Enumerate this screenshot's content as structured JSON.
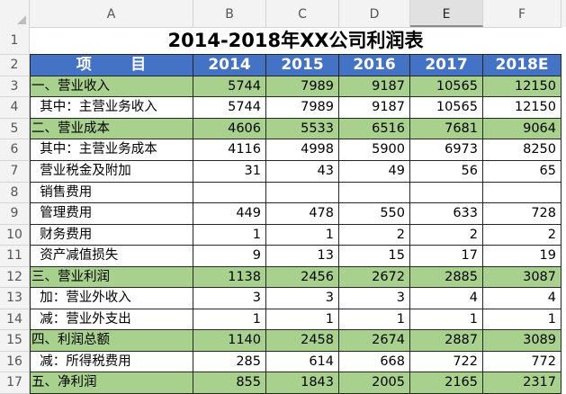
{
  "sheet": {
    "columns": [
      "A",
      "B",
      "C",
      "D",
      "E",
      "F"
    ],
    "selected_column": "E",
    "row_numbers": [
      "1",
      "2",
      "3",
      "4",
      "5",
      "6",
      "7",
      "8",
      "9",
      "10",
      "11",
      "12",
      "13",
      "14",
      "15",
      "16",
      "17"
    ],
    "title": "2014-2018年XX公司利润表",
    "header": {
      "item_part1": "项",
      "item_part2": "目",
      "years": [
        "2014",
        "2015",
        "2016",
        "2017",
        "2018E"
      ]
    },
    "rows": [
      {
        "label": "一、营业收入",
        "values": [
          "5744",
          "7989",
          "9187",
          "10565",
          "12150"
        ],
        "highlight": true
      },
      {
        "label": "  其中：主营业务收入",
        "values": [
          "5744",
          "7989",
          "9187",
          "10565",
          "12150"
        ],
        "highlight": false
      },
      {
        "label": "二、营业成本",
        "values": [
          "4606",
          "5533",
          "6516",
          "7681",
          "9064"
        ],
        "highlight": true
      },
      {
        "label": "  其中：主营业务成本",
        "values": [
          "4116",
          "4998",
          "5900",
          "6973",
          "8250"
        ],
        "highlight": false
      },
      {
        "label": "  营业税金及附加",
        "values": [
          "31",
          "43",
          "49",
          "56",
          "65"
        ],
        "highlight": false
      },
      {
        "label": "  销售费用",
        "values": [
          "",
          "",
          "",
          "",
          ""
        ],
        "highlight": false
      },
      {
        "label": "  管理费用",
        "values": [
          "449",
          "478",
          "550",
          "633",
          "728"
        ],
        "highlight": false
      },
      {
        "label": "  财务费用",
        "values": [
          "1",
          "1",
          "2",
          "2",
          "2"
        ],
        "highlight": false
      },
      {
        "label": "  资产减值损失",
        "values": [
          "9",
          "13",
          "15",
          "17",
          "19"
        ],
        "highlight": false
      },
      {
        "label": "三、营业利润",
        "values": [
          "1138",
          "2456",
          "2672",
          "2885",
          "3087"
        ],
        "highlight": true
      },
      {
        "label": "  加：营业外收入",
        "values": [
          "3",
          "3",
          "3",
          "4",
          "4"
        ],
        "highlight": false
      },
      {
        "label": "  减：营业外支出",
        "values": [
          "1",
          "1",
          "1",
          "1",
          "1"
        ],
        "highlight": false
      },
      {
        "label": "四、利润总额",
        "values": [
          "1140",
          "2458",
          "2674",
          "2887",
          "3089"
        ],
        "highlight": true
      },
      {
        "label": "  减：所得税费用",
        "values": [
          "285",
          "614",
          "668",
          "722",
          "772"
        ],
        "highlight": false
      },
      {
        "label": "五、净利润",
        "values": [
          "855",
          "1843",
          "2005",
          "2165",
          "2317"
        ],
        "highlight": true
      }
    ],
    "colors": {
      "header_blue": "#4472c4",
      "highlight_green": "#a9d18e",
      "grid_header_bg": "#f3f3f3"
    }
  }
}
